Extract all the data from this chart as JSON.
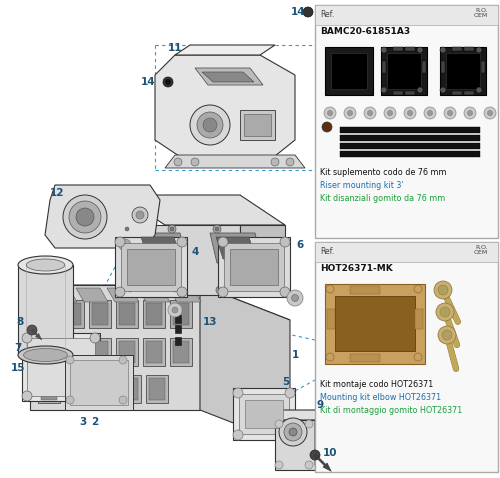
{
  "bg_color": "#ffffff",
  "part_num_color": "#1a5276",
  "dashed_color": "#3399cc",
  "line_color": "#333333",
  "panel1": {
    "ref": "BAMC20-61851A3",
    "desc1": "Kit suplemento codo de 76 mm",
    "desc2": "Riser mounting kit 3'",
    "desc3": "Kit disanziali gomito da 76 mm"
  },
  "panel2": {
    "ref": "HOT26371-MK",
    "desc1": "Kit montaje codo HOT26371",
    "desc2": "Mounting kit elbow HOT26371",
    "desc3": "Kit di montaggio gomito HOT26371"
  }
}
